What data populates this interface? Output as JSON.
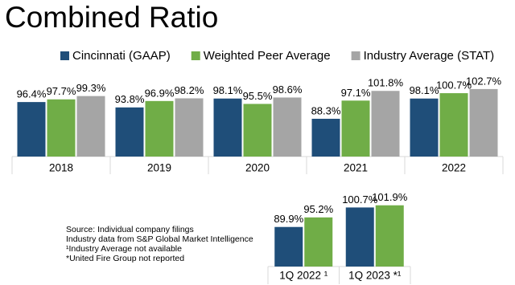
{
  "title": "Combined Ratio",
  "notes": [
    "Source: Individual company filings",
    "Industry data from S&P Global Market Intelligence",
    "¹Industry Average not available",
    "*United Fire Group not reported"
  ],
  "chart_data": [
    {
      "type": "bar",
      "categories": [
        "2018",
        "2019",
        "2020",
        "2021",
        "2022"
      ],
      "ylim": [
        70,
        105
      ],
      "legend": "top",
      "series": [
        {
          "name": "Cincinnati (GAAP)",
          "color": "#1f4e79",
          "values": [
            96.4,
            93.8,
            98.1,
            88.3,
            98.1
          ],
          "value_labels": [
            "96.4%",
            "93.8%",
            "98.1%",
            "88.3%",
            "98.1%"
          ]
        },
        {
          "name": "Weighted Peer Average",
          "color": "#70ad47",
          "values": [
            97.7,
            96.9,
            95.5,
            97.1,
            100.7
          ],
          "value_labels": [
            "97.7%",
            "96.9%",
            "95.5%",
            "97.1%",
            "100.7%"
          ]
        },
        {
          "name": "Industry Average (STAT)",
          "color": "#a5a5a5",
          "values": [
            99.3,
            98.2,
            98.6,
            101.8,
            102.7
          ],
          "value_labels": [
            "99.3%",
            "98.2%",
            "98.6%",
            "101.8%",
            "102.7%"
          ]
        }
      ]
    },
    {
      "type": "bar",
      "categories": [
        "1Q 2022 ¹",
        "1Q 2023 *¹"
      ],
      "ylim": [
        68,
        104
      ],
      "series": [
        {
          "color": "#1f4e79",
          "values": [
            89.9,
            100.7
          ],
          "value_labels": [
            "89.9%",
            "100.7%"
          ]
        },
        {
          "color": "#70ad47",
          "values": [
            95.2,
            101.9
          ],
          "value_labels": [
            "95.2%",
            "101.9%"
          ]
        }
      ]
    }
  ]
}
